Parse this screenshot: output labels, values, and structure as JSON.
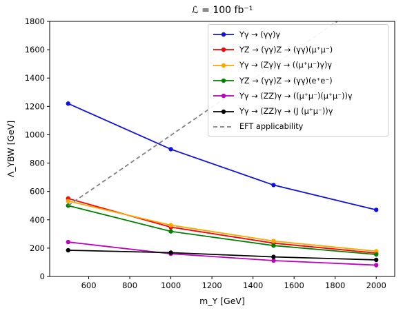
{
  "chart_data": {
    "type": "line",
    "title": "ℒ = 100 fb⁻¹",
    "xlabel": "m_Y [GeV]",
    "ylabel": "Λ_YBW [GeV]",
    "xlim": [
      410,
      2090
    ],
    "ylim": [
      0,
      1800
    ],
    "xticks": [
      600,
      800,
      1000,
      1200,
      1400,
      1600,
      1800,
      2000
    ],
    "yticks": [
      0,
      200,
      400,
      600,
      800,
      1000,
      1200,
      1400,
      1600,
      1800
    ],
    "xtick_labels": [
      "600",
      "800",
      "1000",
      "1200",
      "1400",
      "1600",
      "1800",
      "2000"
    ],
    "ytick_labels": [
      "0",
      "200",
      "400",
      "600",
      "800",
      "1000",
      "1200",
      "1400",
      "1600",
      "1800"
    ],
    "grid": false,
    "legend_position": "top-right",
    "series": [
      {
        "name": "Yγ → (γγ)γ",
        "color": "#1010e0",
        "marker": "circle",
        "dashed": false,
        "x": [
          500,
          1000,
          1500,
          2000
        ],
        "y": [
          1220,
          898,
          645,
          470
        ]
      },
      {
        "name": "YZ → (γγ)Z → (γγ)(μ⁺μ⁻)",
        "color": "#ff0000",
        "marker": "circle",
        "dashed": false,
        "x": [
          500,
          1000,
          1500,
          2000
        ],
        "y": [
          550,
          348,
          235,
          165
        ]
      },
      {
        "name": "Yγ → (Zγ)γ → ((μ⁺μ⁻)γ)γ",
        "color": "#ffa500",
        "marker": "circle",
        "dashed": false,
        "x": [
          500,
          1000,
          1500,
          2000
        ],
        "y": [
          532,
          362,
          250,
          178
        ]
      },
      {
        "name": "YZ → (γγ)Z → (γγ)(e⁺e⁻)",
        "color": "#008000",
        "marker": "circle",
        "dashed": false,
        "x": [
          500,
          1000,
          1500,
          2000
        ],
        "y": [
          500,
          318,
          218,
          155
        ]
      },
      {
        "name": "Yγ → (ZZ)γ → ((μ⁺μ⁻)(μ⁺μ⁻))γ",
        "color": "#bf00bf",
        "marker": "circle",
        "dashed": false,
        "x": [
          500,
          1000,
          1500,
          2000
        ],
        "y": [
          243,
          160,
          112,
          80
        ]
      },
      {
        "name": "Yγ → (ZZ)γ → (J (μ⁺μ⁻))γ",
        "color": "#000000",
        "marker": "circle",
        "dashed": false,
        "x": [
          500,
          1000,
          1500,
          2000
        ],
        "y": [
          185,
          168,
          138,
          117
        ]
      },
      {
        "name": "EFT applicability",
        "color": "#808080",
        "marker": "none",
        "dashed": true,
        "x": [
          500,
          1810
        ],
        "y": [
          500,
          1800
        ]
      }
    ]
  }
}
